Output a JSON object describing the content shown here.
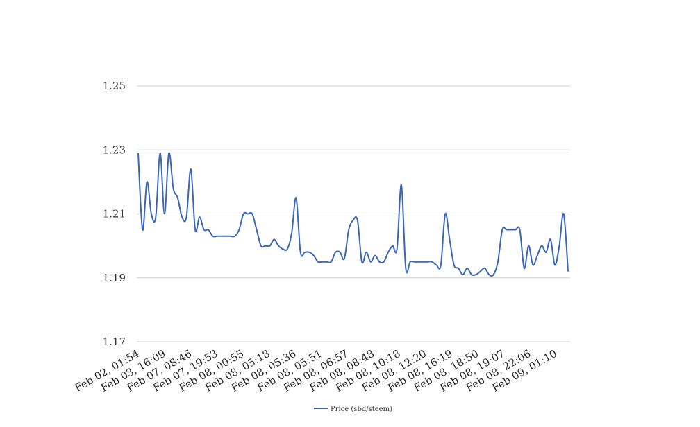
{
  "chart_data": {
    "type": "line",
    "title": "",
    "xlabel": "",
    "ylabel": "",
    "ylim": [
      1.17,
      1.25
    ],
    "yticks": [
      "1.25",
      "1.23",
      "1.21",
      "1.19",
      "1.17"
    ],
    "grid": true,
    "legend_position": "bottom-center",
    "x_tick_labels": [
      "Feb 02, 01:54",
      "Feb 03, 16:09",
      "Feb 07, 08:46",
      "Feb 07, 19:53",
      "Feb 08, 00:55",
      "Feb 08, 05:18",
      "Feb 08, 05:36",
      "Feb 08, 05:51",
      "Feb 08, 06:57",
      "Feb 08, 08:48",
      "Feb 08, 10:18",
      "Feb 08, 12:20",
      "Feb 08, 16:19",
      "Feb 08, 18:50",
      "Feb 08, 19:07",
      "Feb 08, 22:06",
      "Feb 09, 01:10"
    ],
    "series": [
      {
        "name": "Price (sbd/steem)",
        "color": "#3a66b8",
        "values": [
          1.229,
          1.205,
          1.22,
          1.21,
          1.209,
          1.229,
          1.21,
          1.229,
          1.218,
          1.215,
          1.209,
          1.209,
          1.224,
          1.205,
          1.209,
          1.205,
          1.205,
          1.203,
          1.203,
          1.203,
          1.203,
          1.203,
          1.203,
          1.205,
          1.21,
          1.21,
          1.21,
          1.205,
          1.2,
          1.2,
          1.2,
          1.202,
          1.2,
          1.199,
          1.199,
          1.204,
          1.215,
          1.198,
          1.198,
          1.198,
          1.197,
          1.195,
          1.195,
          1.195,
          1.195,
          1.198,
          1.198,
          1.196,
          1.205,
          1.208,
          1.208,
          1.195,
          1.198,
          1.195,
          1.197,
          1.195,
          1.195,
          1.198,
          1.2,
          1.199,
          1.219,
          1.193,
          1.195,
          1.195,
          1.195,
          1.195,
          1.195,
          1.195,
          1.194,
          1.194,
          1.21,
          1.202,
          1.194,
          1.193,
          1.191,
          1.193,
          1.191,
          1.191,
          1.192,
          1.193,
          1.191,
          1.191,
          1.195,
          1.205,
          1.205,
          1.205,
          1.205,
          1.205,
          1.193,
          1.2,
          1.194,
          1.197,
          1.2,
          1.198,
          1.202,
          1.194,
          1.2,
          1.21,
          1.192
        ]
      }
    ]
  }
}
